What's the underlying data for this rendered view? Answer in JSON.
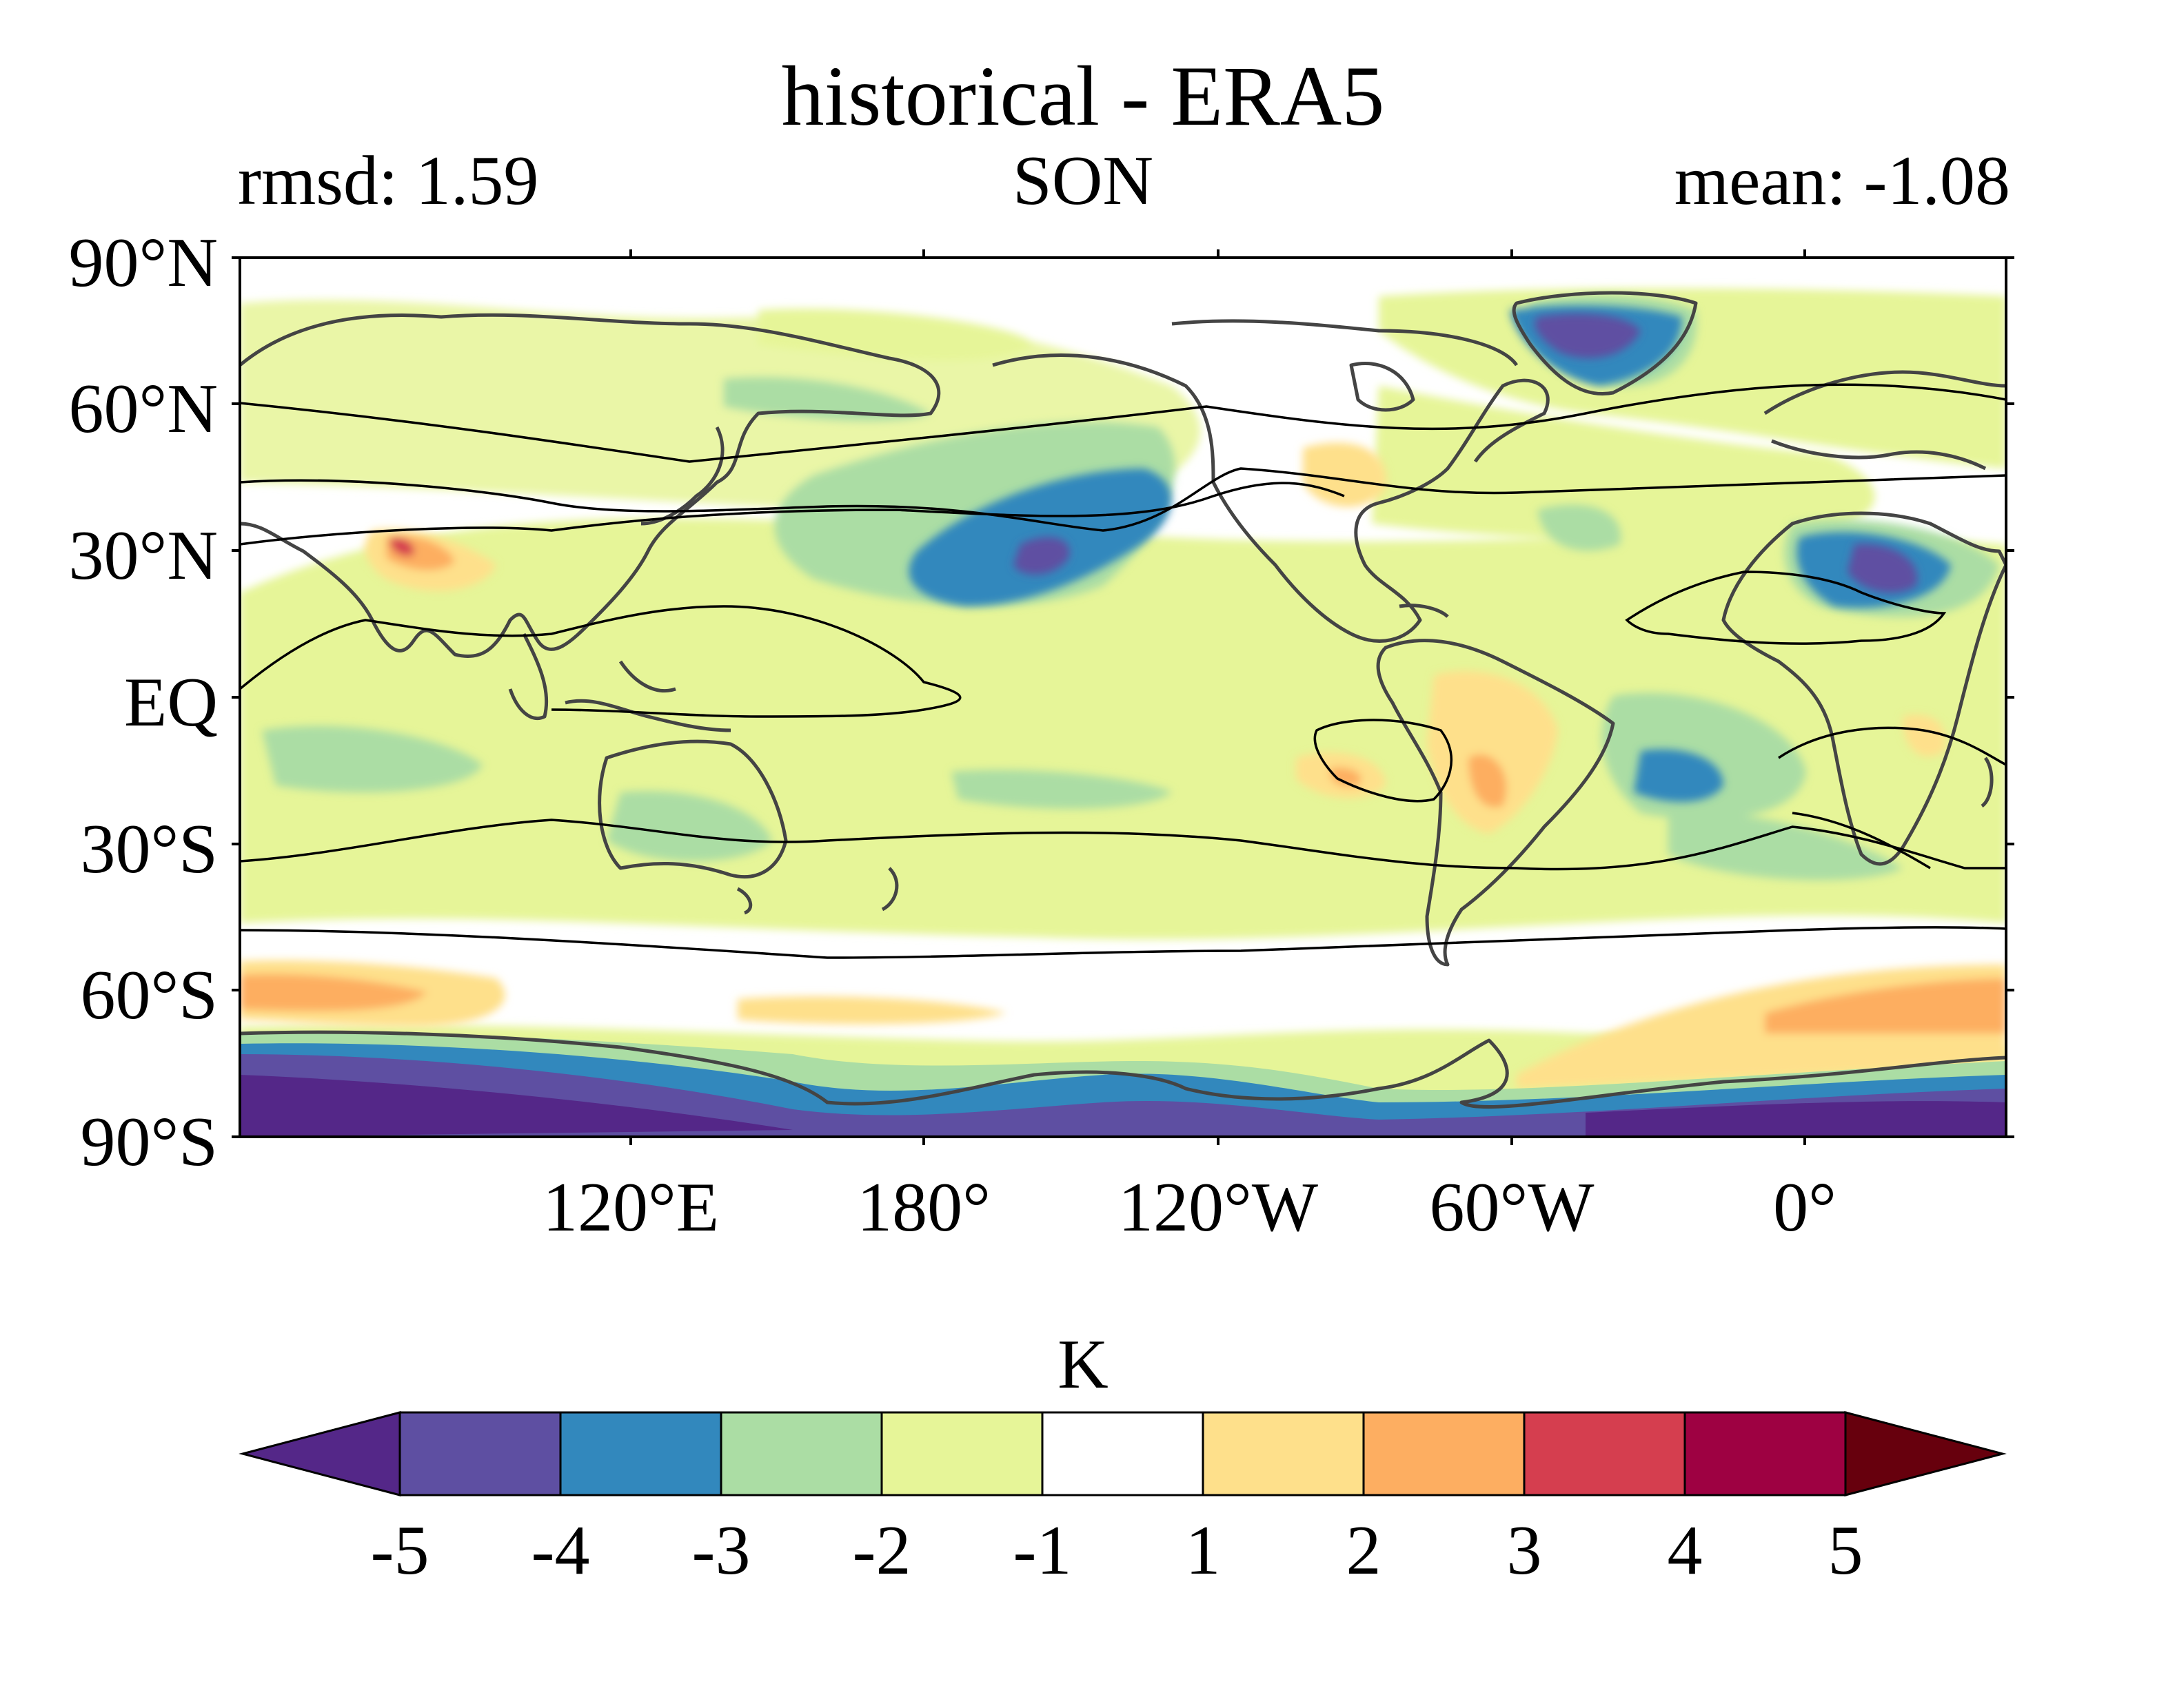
{
  "map": {
    "title": "historical - ERA5",
    "left_stat": "rmsd: 1.59",
    "season": "SON",
    "right_stat": "mean: -1.08",
    "lat_labels": [
      "90°N",
      "60°N",
      "30°N",
      "EQ",
      "30°S",
      "60°S",
      "90°S"
    ],
    "lon_labels": [
      "120°E",
      "180°",
      "120°W",
      "60°W",
      "0°"
    ]
  },
  "colorbar": {
    "unit": "K",
    "ticks": [
      "-5",
      "-4",
      "-3",
      "-2",
      "-1",
      "1",
      "2",
      "3",
      "4",
      "5"
    ],
    "colors": [
      "#5e3c99",
      "#5e4fa2",
      "#3288bd",
      "#abdda4",
      "#e6f598",
      "#ffffff",
      "#fee08b",
      "#fdae61",
      "#d53e4f",
      "#9e0142"
    ],
    "under_color": "#542788",
    "over_color": "#67000d"
  },
  "palette": {
    "deep_purple": "#5e4fa2",
    "blue": "#3288bd",
    "green": "#abdda4",
    "light_green": "#e6f598",
    "white": "#ffffff",
    "light_orange": "#fee08b",
    "orange": "#fdae61",
    "red": "#d53e4f",
    "coast": "#444444",
    "contour": "#000000"
  }
}
